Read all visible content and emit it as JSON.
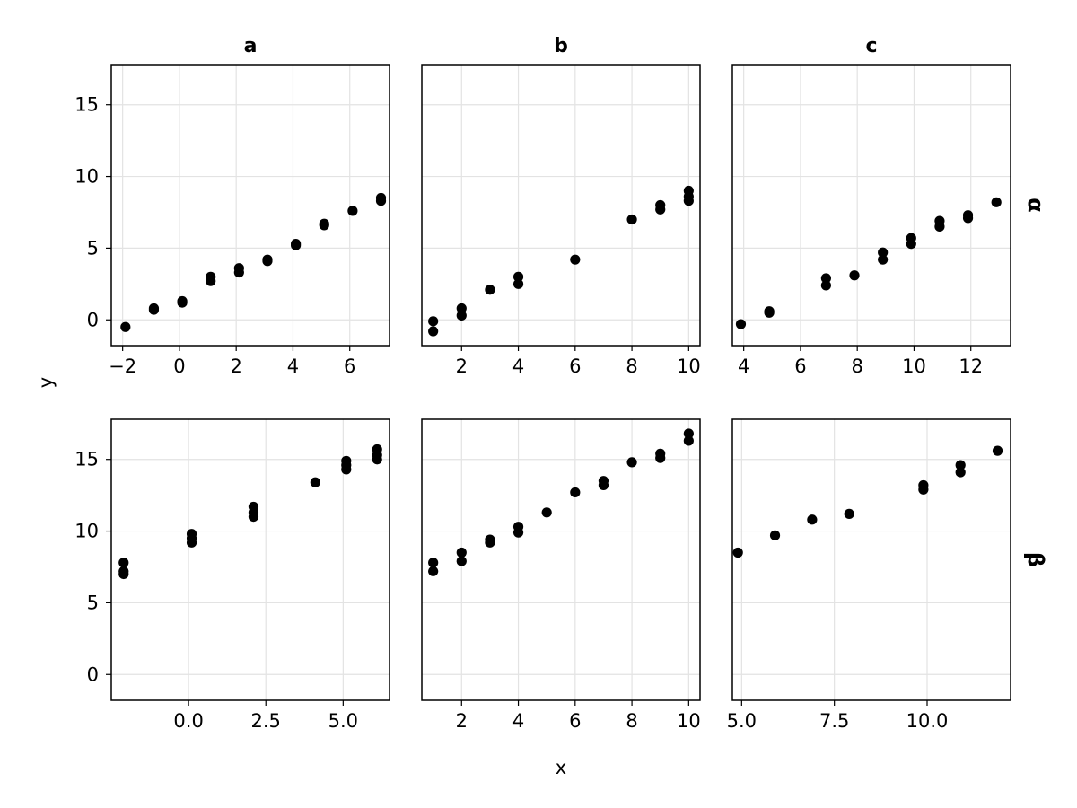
{
  "chart_data": {
    "type": "scatter",
    "xlabel": "x",
    "ylabel": "y",
    "grid": true,
    "shared_y": [
      -1.8,
      17.8
    ],
    "y_ticks": [
      0,
      5,
      10,
      15
    ],
    "y_tick_labels": [
      "0",
      "5",
      "10",
      "15"
    ],
    "columns": [
      "a",
      "b",
      "c"
    ],
    "rows": [
      "α",
      "β"
    ],
    "panels": [
      {
        "row": "α",
        "col": "a",
        "xlim": [
          -2.4,
          7.4
        ],
        "x_ticks": [
          -2,
          0,
          2,
          4,
          6
        ],
        "x_tick_labels": [
          "−2",
          "0",
          "2",
          "4",
          "6"
        ],
        "points": [
          [
            -1.9,
            -0.5
          ],
          [
            -0.9,
            0.7
          ],
          [
            -0.9,
            0.8
          ],
          [
            0.1,
            1.2
          ],
          [
            0.1,
            1.3
          ],
          [
            1.1,
            2.7
          ],
          [
            1.1,
            3.0
          ],
          [
            2.1,
            3.3
          ],
          [
            2.1,
            3.6
          ],
          [
            3.1,
            4.1
          ],
          [
            3.1,
            4.2
          ],
          [
            4.1,
            5.2
          ],
          [
            4.1,
            5.3
          ],
          [
            5.1,
            6.6
          ],
          [
            5.1,
            6.7
          ],
          [
            6.1,
            7.6
          ],
          [
            7.1,
            8.3
          ],
          [
            7.1,
            8.5
          ]
        ]
      },
      {
        "row": "α",
        "col": "b",
        "xlim": [
          0.6,
          10.4
        ],
        "x_ticks": [
          2,
          4,
          6,
          8,
          10
        ],
        "x_tick_labels": [
          "2",
          "4",
          "6",
          "8",
          "10"
        ],
        "points": [
          [
            1,
            -0.8
          ],
          [
            1,
            -0.1
          ],
          [
            2,
            0.3
          ],
          [
            2,
            0.8
          ],
          [
            3,
            2.1
          ],
          [
            4,
            2.5
          ],
          [
            4,
            3.0
          ],
          [
            6,
            4.2
          ],
          [
            8,
            7.0
          ],
          [
            9,
            7.7
          ],
          [
            9,
            8.0
          ],
          [
            10,
            8.3
          ],
          [
            10,
            8.6
          ],
          [
            10,
            9.0
          ]
        ]
      },
      {
        "row": "α",
        "col": "c",
        "xlim": [
          3.6,
          13.4
        ],
        "x_ticks": [
          4,
          6,
          8,
          10,
          12
        ],
        "x_tick_labels": [
          "4",
          "6",
          "8",
          "10",
          "12"
        ],
        "points": [
          [
            3.9,
            -0.3
          ],
          [
            4.9,
            0.5
          ],
          [
            4.9,
            0.6
          ],
          [
            6.9,
            2.4
          ],
          [
            6.9,
            2.9
          ],
          [
            7.9,
            3.1
          ],
          [
            8.9,
            4.2
          ],
          [
            8.9,
            4.7
          ],
          [
            9.9,
            5.3
          ],
          [
            9.9,
            5.7
          ],
          [
            10.9,
            6.5
          ],
          [
            10.9,
            6.9
          ],
          [
            11.9,
            7.1
          ],
          [
            11.9,
            7.3
          ],
          [
            12.9,
            8.2
          ]
        ]
      },
      {
        "row": "β",
        "col": "a",
        "xlim": [
          -2.5,
          6.5
        ],
        "x_ticks": [
          0.0,
          2.5,
          5.0
        ],
        "x_tick_labels": [
          "0.0",
          "2.5",
          "5.0"
        ],
        "points": [
          [
            -2.1,
            7.0
          ],
          [
            -2.1,
            7.2
          ],
          [
            -2.1,
            7.8
          ],
          [
            0.1,
            9.2
          ],
          [
            0.1,
            9.5
          ],
          [
            0.1,
            9.8
          ],
          [
            2.1,
            11.0
          ],
          [
            2.1,
            11.3
          ],
          [
            2.1,
            11.7
          ],
          [
            4.1,
            13.4
          ],
          [
            5.1,
            14.3
          ],
          [
            5.1,
            14.6
          ],
          [
            5.1,
            14.9
          ],
          [
            6.1,
            15.0
          ],
          [
            6.1,
            15.3
          ],
          [
            6.1,
            15.7
          ]
        ]
      },
      {
        "row": "β",
        "col": "b",
        "xlim": [
          0.6,
          10.4
        ],
        "x_ticks": [
          2,
          4,
          6,
          8,
          10
        ],
        "x_tick_labels": [
          "2",
          "4",
          "6",
          "8",
          "10"
        ],
        "points": [
          [
            1,
            7.2
          ],
          [
            1,
            7.8
          ],
          [
            2,
            7.9
          ],
          [
            2,
            8.5
          ],
          [
            3,
            9.2
          ],
          [
            3,
            9.4
          ],
          [
            4,
            9.9
          ],
          [
            4,
            10.3
          ],
          [
            5,
            11.3
          ],
          [
            6,
            12.7
          ],
          [
            7,
            13.2
          ],
          [
            7,
            13.5
          ],
          [
            8,
            14.8
          ],
          [
            9,
            15.1
          ],
          [
            9,
            15.4
          ],
          [
            10,
            16.3
          ],
          [
            10,
            16.8
          ]
        ]
      },
      {
        "row": "β",
        "col": "c",
        "xlim": [
          4.75,
          12.25
        ],
        "x_ticks": [
          5.0,
          7.5,
          10.0
        ],
        "x_tick_labels": [
          "5.0",
          "7.5",
          "10.0"
        ],
        "points": [
          [
            4.9,
            8.5
          ],
          [
            5.9,
            9.7
          ],
          [
            6.9,
            10.8
          ],
          [
            7.9,
            11.2
          ],
          [
            9.9,
            12.9
          ],
          [
            9.9,
            13.2
          ],
          [
            10.9,
            14.1
          ],
          [
            10.9,
            14.6
          ],
          [
            11.9,
            15.6
          ]
        ]
      }
    ]
  }
}
